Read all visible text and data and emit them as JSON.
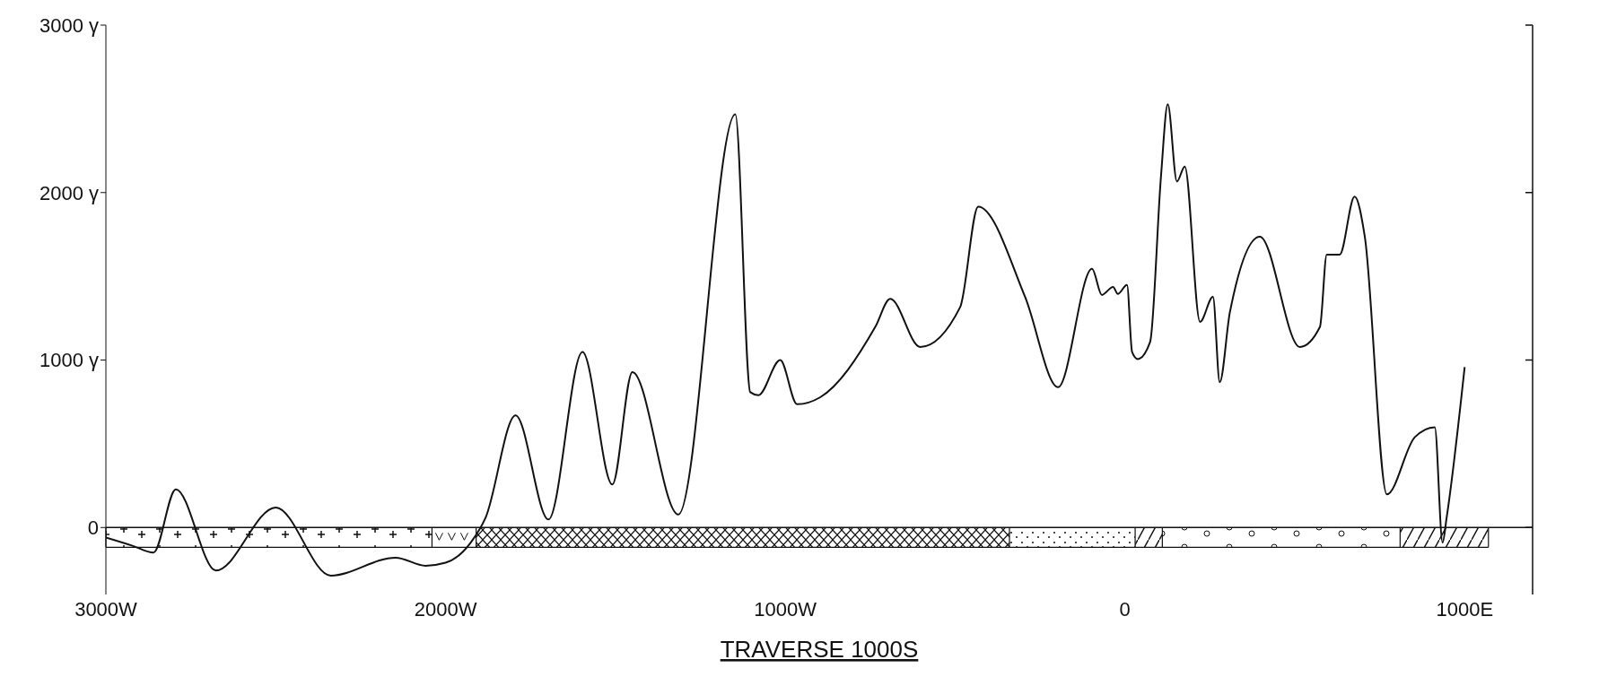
{
  "chart_data": {
    "type": "line",
    "xlabel": "TRAVERSE 1000S",
    "x": [
      -3000,
      -2920,
      -2860,
      -2794,
      -2676,
      -2500,
      -2338,
      -2147,
      -2059,
      -2000,
      -1926,
      -1882,
      -1794,
      -1697,
      -1597,
      -1509,
      -1450,
      -1315,
      -1147,
      -1103,
      -1079,
      -1015,
      -965,
      -897,
      -735,
      -691,
      -603,
      -485,
      -432,
      -294,
      -197,
      -97,
      -68,
      -35,
      -21,
      6,
      21,
      38,
      74,
      106,
      126,
      153,
      176,
      221,
      259,
      279,
      309,
      397,
      515,
      574,
      594,
      632,
      676,
      706,
      771,
      853,
      912,
      935,
      947,
      1000
    ],
    "series": [
      {
        "color": "#111111",
        "values": [
          -60,
          -110,
          -150,
          228,
          -257,
          120,
          -287,
          -180,
          -228,
          -210,
          -90,
          60,
          670,
          48,
          1048,
          257,
          928,
          78,
          2467,
          808,
          790,
          1000,
          736,
          778,
          1198,
          1365,
          1078,
          1317,
          1916,
          1377,
          838,
          1545,
          1389,
          1437,
          1395,
          1449,
          1048,
          1006,
          1108,
          2096,
          2527,
          2066,
          2156,
          1228,
          1377,
          868,
          1287,
          1737,
          1078,
          1198,
          1629,
          1629,
          1976,
          1737,
          198,
          539,
          599,
          -90,
          60,
          958
        ]
      }
    ],
    "xlim": [
      -3000,
      1200
    ],
    "xticks": [
      {
        "value": -3000,
        "label": "3000W"
      },
      {
        "value": -2000,
        "label": "2000W"
      },
      {
        "value": -1000,
        "label": "1000W"
      },
      0,
      {
        "value": 1000,
        "label": "1000E"
      }
    ],
    "ylim": [
      -400,
      3000
    ],
    "yticks": [
      0,
      {
        "value": 1000,
        "label": "1000 γ"
      },
      {
        "value": 2000,
        "label": "2000 γ"
      },
      {
        "value": 3000,
        "label": "3000 γ"
      }
    ],
    "ref_lines": [
      {
        "axis": "y",
        "value": 0,
        "color": "#111111",
        "line_style": "solid"
      }
    ],
    "grid": false,
    "legend": false,
    "marker": "none",
    "line_style": "solid"
  }
}
